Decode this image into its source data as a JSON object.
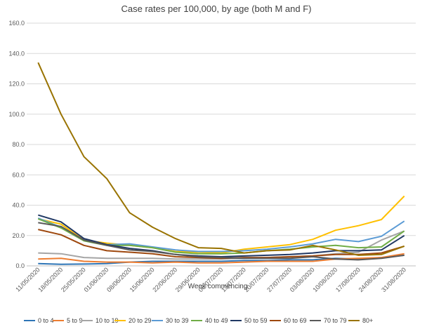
{
  "chart_data": {
    "type": "line",
    "title": "Case rates per 100,000, by age (both M and F)",
    "xlabel": "Week commencing",
    "ylabel": "",
    "ylim": [
      0,
      160
    ],
    "yticks": [
      "0.0",
      "20.0",
      "40.0",
      "60.0",
      "80.0",
      "100.0",
      "120.0",
      "140.0",
      "160.0"
    ],
    "grid": true,
    "legend_position": "bottom",
    "x": [
      "11/05/2020",
      "18/05/2020",
      "25/05/2020",
      "01/06/2020",
      "08/06/2020",
      "15/06/2020",
      "22/06/2020",
      "29/06/2020",
      "06/07/2020",
      "13/07/2020",
      "20/07/2020",
      "27/07/2020",
      "03/08/2020",
      "10/08/2020",
      "17/08/2020",
      "24/08/2020",
      "31/08/2020"
    ],
    "series": [
      {
        "name": "0 to 4",
        "color": "#2E75B6",
        "values": [
          1.5,
          1.0,
          1.2,
          1.5,
          2.5,
          3.0,
          3.0,
          3.0,
          3.0,
          3.5,
          3.5,
          4.0,
          4.0,
          5.0,
          4.5,
          5.5,
          7.0
        ]
      },
      {
        "name": "5 to 9",
        "color": "#ED7D31",
        "values": [
          4.5,
          5.0,
          3.0,
          2.5,
          2.5,
          2.0,
          2.5,
          2.0,
          2.0,
          2.5,
          3.0,
          3.0,
          3.0,
          4.5,
          5.0,
          5.5,
          8.0
        ]
      },
      {
        "name": "10 to 19",
        "color": "#A5A5A5",
        "values": [
          8.5,
          8.0,
          5.5,
          5.0,
          5.0,
          5.0,
          4.5,
          4.5,
          4.5,
          5.0,
          5.5,
          6.0,
          6.5,
          8.0,
          9.0,
          17.0,
          23.0
        ]
      },
      {
        "name": "20 to 29",
        "color": "#FFC000",
        "values": [
          31.0,
          27.5,
          17.0,
          15.0,
          13.5,
          12.0,
          9.5,
          9.0,
          8.5,
          11.0,
          12.5,
          14.0,
          17.5,
          23.5,
          26.5,
          30.5,
          46.0
        ]
      },
      {
        "name": "30 to 39",
        "color": "#5B9BD5",
        "values": [
          31.5,
          25.5,
          17.0,
          14.0,
          14.5,
          12.5,
          10.5,
          9.5,
          9.5,
          10.0,
          11.0,
          12.5,
          14.5,
          17.5,
          16.0,
          19.5,
          29.5
        ]
      },
      {
        "name": "40 to 49",
        "color": "#70AD47",
        "values": [
          31.0,
          25.0,
          16.5,
          13.5,
          13.5,
          12.0,
          9.0,
          8.0,
          8.0,
          8.5,
          10.0,
          11.0,
          12.5,
          13.5,
          12.0,
          12.5,
          23.0
        ]
      },
      {
        "name": "50 to 59",
        "color": "#203864",
        "values": [
          33.5,
          29.0,
          18.0,
          14.0,
          11.5,
          10.0,
          7.5,
          6.5,
          6.0,
          6.5,
          7.0,
          7.5,
          8.5,
          10.0,
          10.0,
          10.5,
          20.0
        ]
      },
      {
        "name": "60 to 69",
        "color": "#9E480E",
        "values": [
          24.0,
          20.5,
          13.5,
          10.0,
          9.0,
          8.0,
          6.0,
          5.5,
          5.0,
          5.5,
          5.5,
          6.0,
          6.5,
          7.5,
          7.5,
          8.5,
          13.0
        ]
      },
      {
        "name": "70 to 79",
        "color": "#595959",
        "values": [
          28.5,
          26.0,
          17.0,
          13.5,
          10.5,
          9.5,
          7.5,
          6.0,
          5.5,
          5.0,
          5.0,
          5.0,
          6.0,
          4.5,
          4.0,
          5.0,
          7.0
        ]
      },
      {
        "name": "80+",
        "color": "#997300",
        "values": [
          134.0,
          100.0,
          72.0,
          57.5,
          35.0,
          25.5,
          18.0,
          12.0,
          11.5,
          8.5,
          10.0,
          10.5,
          13.5,
          10.5,
          7.0,
          7.5,
          13.0
        ]
      }
    ]
  }
}
